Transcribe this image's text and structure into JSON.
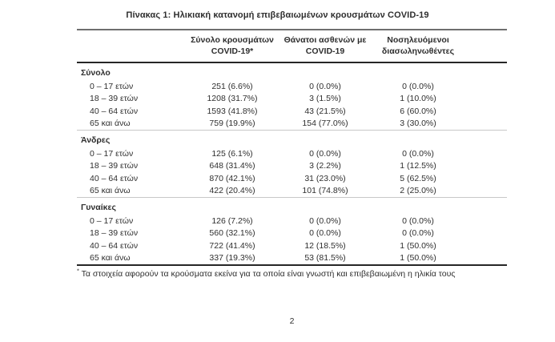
{
  "title": "Πίνακας 1: Ηλικιακή κατανομή επιβεβαιωμένων κρουσμάτων COVID-19",
  "table": {
    "columns": [
      {
        "line1": "Σύνολο κρουσμάτων",
        "line2": "COVID-19*"
      },
      {
        "line1": "Θάνατοι ασθενών με",
        "line2": "COVID-19"
      },
      {
        "line1": "Νοσηλευόμενοι",
        "line2": "διασωληνωθέντες"
      }
    ],
    "sections": [
      {
        "label": "Σύνολο",
        "rows": [
          {
            "age": "0 – 17 ετών",
            "cases": "251 (6.6%)",
            "deaths": "0 (0.0%)",
            "intubated": "0 (0.0%)"
          },
          {
            "age": "18 – 39 ετών",
            "cases": "1208 (31.7%)",
            "deaths": "3 (1.5%)",
            "intubated": "1 (10.0%)"
          },
          {
            "age": "40 – 64 ετών",
            "cases": "1593 (41.8%)",
            "deaths": "43 (21.5%)",
            "intubated": "6 (60.0%)"
          },
          {
            "age": "65 και άνω",
            "cases": "759 (19.9%)",
            "deaths": "154 (77.0%)",
            "intubated": "3 (30.0%)"
          }
        ]
      },
      {
        "label": "Άνδρες",
        "rows": [
          {
            "age": "0 – 17 ετών",
            "cases": "125 (6.1%)",
            "deaths": "0 (0.0%)",
            "intubated": "0 (0.0%)"
          },
          {
            "age": "18 – 39 ετών",
            "cases": "648 (31.4%)",
            "deaths": "3 (2.2%)",
            "intubated": "1 (12.5%)"
          },
          {
            "age": "40 – 64 ετών",
            "cases": "870 (42.1%)",
            "deaths": "31 (23.0%)",
            "intubated": "5 (62.5%)"
          },
          {
            "age": "65 και άνω",
            "cases": "422 (20.4%)",
            "deaths": "101 (74.8%)",
            "intubated": "2 (25.0%)"
          }
        ]
      },
      {
        "label": "Γυναίκες",
        "rows": [
          {
            "age": "0 – 17 ετών",
            "cases": "126 (7.2%)",
            "deaths": "0 (0.0%)",
            "intubated": "0 (0.0%)"
          },
          {
            "age": "18 – 39 ετών",
            "cases": "560 (32.1%)",
            "deaths": "0 (0.0%)",
            "intubated": "0 (0.0%)"
          },
          {
            "age": "40 – 64 ετών",
            "cases": "722 (41.4%)",
            "deaths": "12 (18.5%)",
            "intubated": "1 (50.0%)"
          },
          {
            "age": "65 και άνω",
            "cases": "337 (19.3%)",
            "deaths": "53 (81.5%)",
            "intubated": "1 (50.0%)"
          }
        ]
      }
    ]
  },
  "footnote": {
    "marker": "*",
    "text": "Τα στοιχεία αφορούν τα κρούσματα εκείνα για τα οποία είναι γνωστή και επιβεβαιωμένη η ηλικία τους"
  },
  "page_number": "2",
  "colors": {
    "text": "#2f2f2f",
    "rule_top": "#6f6f6f",
    "rule_dark": "#262626",
    "rule_light": "#c8c8c8",
    "background": "#ffffff"
  }
}
